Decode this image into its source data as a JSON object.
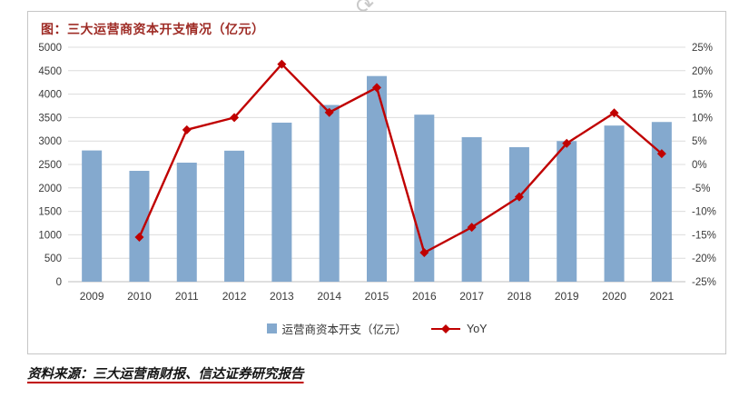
{
  "colors": {
    "title": "#9e2b25",
    "accent_red": "#c00000",
    "bar_blue": "#84a9ce",
    "grid": "#dcdcdc"
  },
  "artifact": {
    "rotate_handle_glyph": "⟳"
  },
  "source": "资料来源：三大运营商财报、信达证券研究报告",
  "chart_data": {
    "type": "bar",
    "combo": "bar+line",
    "title": "图：三大运营商资本开支情况（亿元）",
    "xlabel": "",
    "ylabel": "",
    "categories": [
      "2009",
      "2010",
      "2011",
      "2012",
      "2013",
      "2014",
      "2015",
      "2016",
      "2017",
      "2018",
      "2019",
      "2020",
      "2021"
    ],
    "series": [
      {
        "name": "运营商资本开支（亿元）",
        "type": "bar",
        "axis": "left",
        "color": "#84a9ce",
        "values": [
          2799,
          2364,
          2539,
          2794,
          3392,
          3769,
          4386,
          3562,
          3083,
          2869,
          2999,
          3330,
          3406
        ]
      },
      {
        "name": "YoY",
        "type": "line",
        "axis": "right",
        "color": "#c00000",
        "marker": "diamond",
        "values": [
          null,
          -15.5,
          7.4,
          10.0,
          21.4,
          11.1,
          16.4,
          -18.8,
          -13.4,
          -6.9,
          4.5,
          11.0,
          2.3
        ]
      }
    ],
    "left_axis": {
      "min": 0,
      "max": 5000,
      "step": 500
    },
    "right_axis": {
      "min": -25,
      "max": 25,
      "step": 5,
      "format": "percent"
    },
    "left_ticks_desc": [
      "5000",
      "4500",
      "4000",
      "3500",
      "3000",
      "2500",
      "2000",
      "1500",
      "1000",
      "500",
      "0"
    ],
    "right_ticks_desc": [
      "25%",
      "20%",
      "15%",
      "10%",
      "5%",
      "0%",
      "-5%",
      "-10%",
      "-15%",
      "-20%",
      "-25%"
    ],
    "grid": "horizontal",
    "legend_position": "bottom"
  }
}
